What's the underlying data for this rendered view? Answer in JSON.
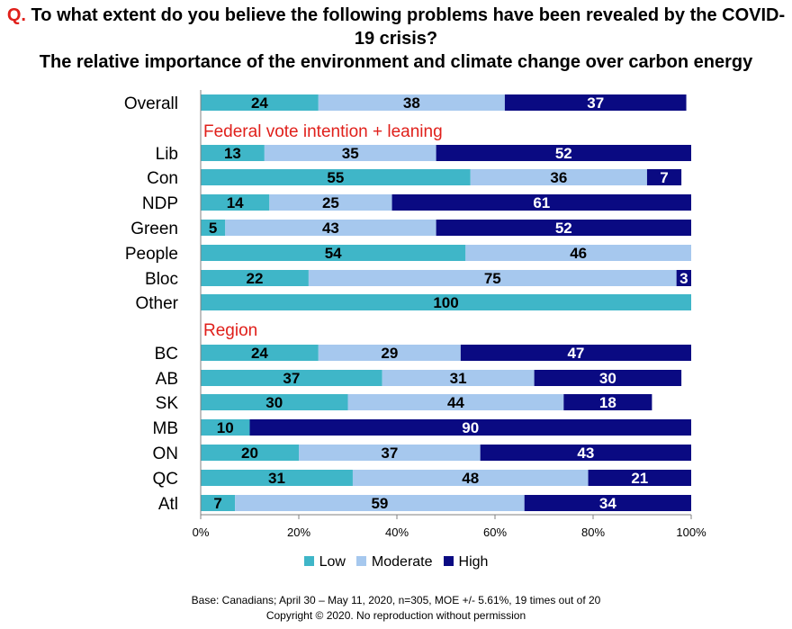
{
  "title": {
    "q_marker": "Q.",
    "question": " To what extent do you believe the following problems have been revealed by the COVID-19 crisis?",
    "subtitle": "The relative importance of the environment and climate change over carbon energy"
  },
  "chart_data": {
    "type": "bar",
    "orientation": "horizontal-stacked-100",
    "categories": [
      "Overall",
      "Lib",
      "Con",
      "NDP",
      "Green",
      "People",
      "Bloc",
      "Other",
      "BC",
      "AB",
      "SK",
      "MB",
      "ON",
      "QC",
      "Atl"
    ],
    "groups": [
      {
        "label": "Federal vote intention + leaning",
        "before": "Lib"
      },
      {
        "label": "Region",
        "before": "BC"
      }
    ],
    "series": [
      {
        "name": "Low",
        "color": "#3fb6c8",
        "values": [
          24,
          13,
          55,
          14,
          5,
          54,
          22,
          100,
          24,
          37,
          30,
          10,
          20,
          31,
          7
        ]
      },
      {
        "name": "Moderate",
        "color": "#a6c8ee",
        "values": [
          38,
          35,
          36,
          25,
          43,
          46,
          75,
          0,
          29,
          31,
          44,
          0,
          37,
          48,
          59
        ]
      },
      {
        "name": "High",
        "color": "#0a0a82",
        "values": [
          37,
          52,
          7,
          61,
          52,
          0,
          3,
          0,
          47,
          30,
          18,
          90,
          43,
          21,
          34
        ]
      }
    ],
    "xlim": [
      0,
      100
    ],
    "xticks": [
      "0%",
      "20%",
      "40%",
      "60%",
      "80%",
      "100%"
    ]
  },
  "footer": {
    "base": "Base: Canadians; April 30 – May 11, 2020, n=305, MOE +/- 5.61%, 19 times out of 20",
    "copyright": "Copyright © 2020. No reproduction without permission"
  }
}
